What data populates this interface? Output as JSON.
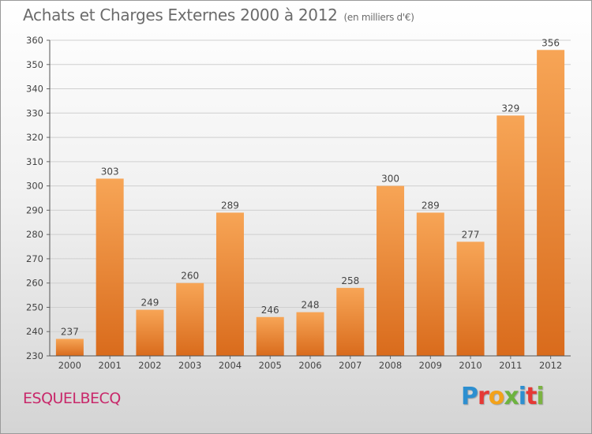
{
  "title": "Achats et Charges Externes 2000 à 2012",
  "unit": "(en milliers d'€)",
  "commune": "ESQUELBECQ",
  "logo": {
    "text": "Proxiti",
    "letter_colors": [
      "#2d8fd0",
      "#e53935",
      "#f3a21a",
      "#6db33f",
      "#2d8fd0",
      "#e53935",
      "#7cb342"
    ]
  },
  "chart_data": {
    "type": "bar",
    "title": "Achats et Charges Externes 2000 à 2012",
    "subtitle": "(en milliers d'€)",
    "categories": [
      "2000",
      "2001",
      "2002",
      "2003",
      "2004",
      "2005",
      "2006",
      "2007",
      "2008",
      "2009",
      "2010",
      "2011",
      "2012"
    ],
    "values": [
      237,
      303,
      249,
      260,
      289,
      246,
      248,
      258,
      300,
      289,
      277,
      329,
      356
    ],
    "ylim": [
      230,
      360
    ],
    "yticks": [
      230,
      240,
      250,
      260,
      270,
      280,
      290,
      300,
      310,
      320,
      330,
      340,
      350,
      360
    ],
    "grid": true,
    "legend": "none",
    "bar_color_top": "#f7a556",
    "bar_color_bottom": "#d96b1c"
  }
}
